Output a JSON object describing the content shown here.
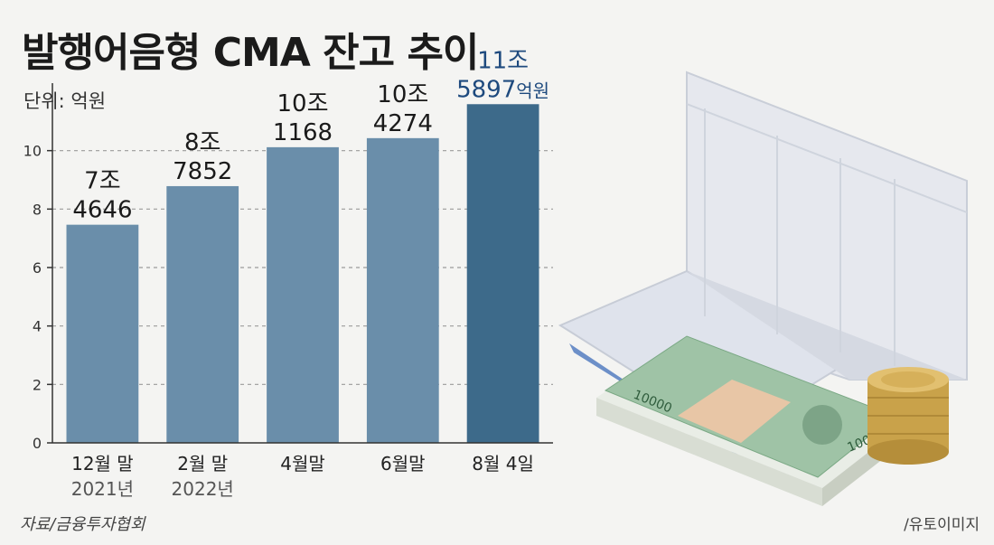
{
  "title": "발행어음형 CMA 잔고 추이",
  "unit": "단위: 억원",
  "source": "자료/금융투자협회",
  "credit": "/유토이미지",
  "colors": {
    "bar": "#6a8eaa",
    "bar_highlight": "#3d6a8a",
    "label_highlight": "#1e4a7e",
    "axis": "#333333",
    "grid": "#9a9a9a"
  },
  "illustration": {
    "items": [
      "ledger-book-icon",
      "banknote-stack-icon",
      "coin-stack-icon"
    ]
  },
  "chart_data": {
    "type": "bar",
    "ylim": [
      0,
      12
    ],
    "yticks": [
      0,
      2,
      4,
      6,
      8,
      10
    ],
    "grid": true,
    "categories": [
      {
        "label": "12월 말",
        "sublabel": "2021년"
      },
      {
        "label": "2월 말",
        "sublabel": "2022년"
      },
      {
        "label": "4월말",
        "sublabel": ""
      },
      {
        "label": "6월말",
        "sublabel": ""
      },
      {
        "label": "8월 4일",
        "sublabel": ""
      }
    ],
    "values": [
      7.4646,
      8.7852,
      10.1168,
      10.4274,
      11.5897
    ],
    "data_labels": [
      {
        "line1": "7조",
        "line2": "4646",
        "suffix": ""
      },
      {
        "line1": "8조",
        "line2": "7852",
        "suffix": ""
      },
      {
        "line1": "10조",
        "line2": "1168",
        "suffix": ""
      },
      {
        "line1": "10조",
        "line2": "4274",
        "suffix": ""
      },
      {
        "line1": "11조",
        "line2": "5897",
        "suffix": "억원"
      }
    ],
    "highlight_index": 4
  }
}
